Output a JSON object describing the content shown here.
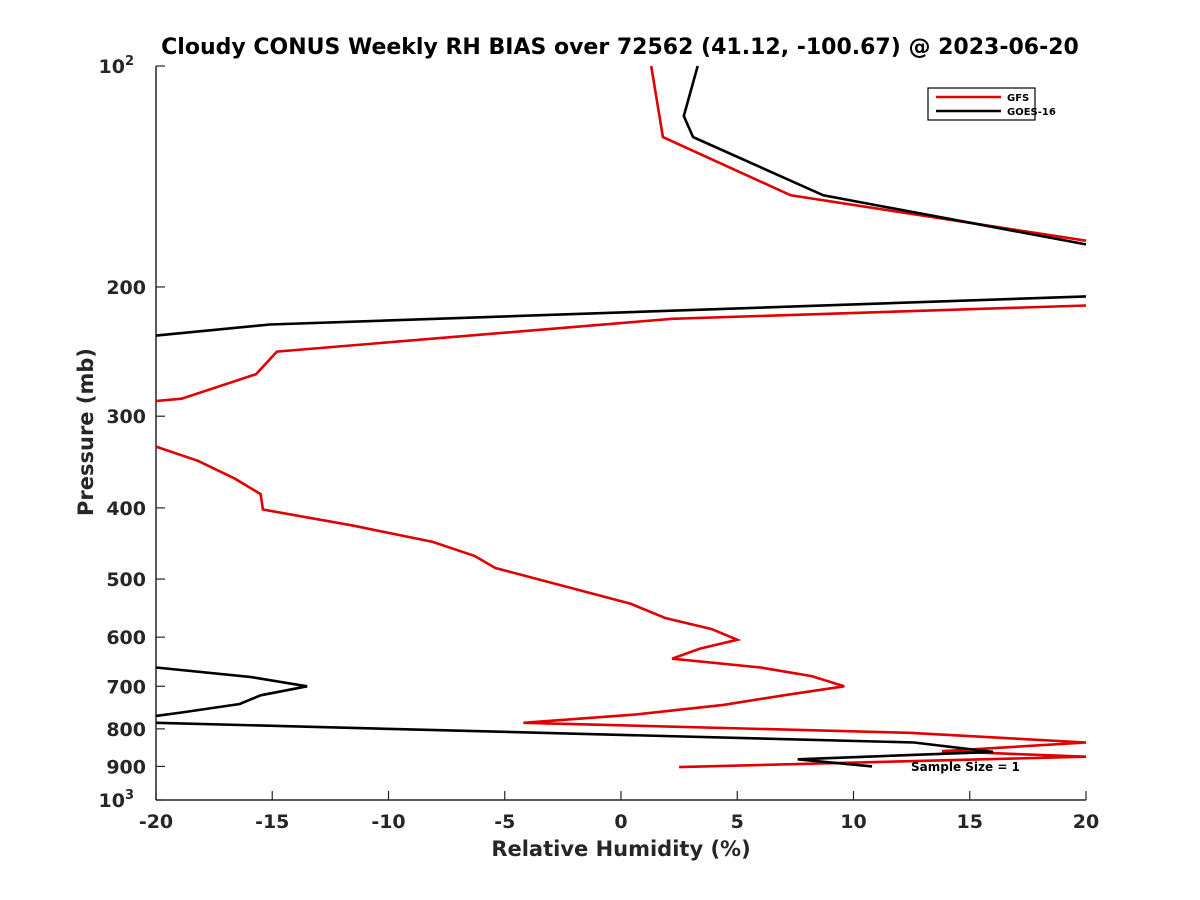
{
  "chart_data": {
    "type": "line",
    "title": "Cloudy CONUS Weekly RH BIAS over 72562 (41.12, -100.67) @ 2023-06-20",
    "xlabel": "Relative Humidity (%)",
    "ylabel": "Pressure (mb)",
    "xlim": [
      -20,
      20
    ],
    "ylim": [
      100,
      1000
    ],
    "yscale": "log",
    "y_reversed": true,
    "grid": false,
    "legend_position": "top-right",
    "x_ticks": [
      "-20",
      "-15",
      "-10",
      "-5",
      "0",
      "5",
      "10",
      "15",
      "20"
    ],
    "y_ticks": [
      {
        "base": "10",
        "exp": "2",
        "text": ""
      },
      {
        "text": "200"
      },
      {
        "text": "300"
      },
      {
        "text": "400"
      },
      {
        "text": "500"
      },
      {
        "text": "600"
      },
      {
        "text": "700"
      },
      {
        "text": "800"
      },
      {
        "text": "900"
      },
      {
        "base": "10",
        "exp": "3",
        "text": ""
      }
    ],
    "annotation": "Sample Size = 1",
    "series": [
      {
        "name": "GFS",
        "color": "#e00000",
        "points": [
          [
            1.3,
            100
          ],
          [
            1.8,
            125
          ],
          [
            7.3,
            150
          ],
          [
            20,
            173
          ],
          [
            null,
            null
          ],
          [
            20,
            212
          ],
          [
            2.2,
            221
          ],
          [
            -14.8,
            245
          ],
          [
            -15.7,
            263
          ],
          [
            -18.9,
            284
          ],
          [
            -20,
            286
          ],
          [
            null,
            null
          ],
          [
            -20,
            330
          ],
          [
            -18.2,
            345
          ],
          [
            -16.6,
            365
          ],
          [
            -15.5,
            383
          ],
          [
            -15.4,
            402
          ],
          [
            -11.5,
            423
          ],
          [
            -8.1,
            445
          ],
          [
            -6.3,
            465
          ],
          [
            -5.4,
            483
          ],
          [
            0.4,
            540
          ],
          [
            1.9,
            565
          ],
          [
            3.9,
            585
          ],
          [
            5.0,
            605
          ],
          [
            3.4,
            622
          ],
          [
            2.2,
            642
          ],
          [
            6.0,
            660
          ],
          [
            8.2,
            678
          ],
          [
            9.6,
            700
          ],
          [
            7.0,
            720
          ],
          [
            4.4,
            742
          ],
          [
            0.6,
            765
          ],
          [
            -4.2,
            785
          ],
          [
            12.4,
            810
          ],
          [
            20,
            835
          ],
          [
            13.8,
            858
          ],
          [
            20,
            873
          ],
          [
            2.5,
            902
          ]
        ]
      },
      {
        "name": "GOES-16",
        "color": "#000000",
        "points": [
          [
            3.3,
            100
          ],
          [
            2.7,
            117
          ],
          [
            3.1,
            125
          ],
          [
            8.7,
            150
          ],
          [
            20,
            175
          ],
          [
            null,
            null
          ],
          [
            20,
            206
          ],
          [
            -15.1,
            225
          ],
          [
            -20,
            233
          ],
          [
            null,
            null
          ],
          [
            -20,
            660
          ],
          [
            -15.9,
            680
          ],
          [
            -13.5,
            700
          ],
          [
            -15.5,
            720
          ],
          [
            -16.4,
            740
          ],
          [
            -18.9,
            760
          ],
          [
            -20,
            768
          ],
          [
            null,
            null
          ],
          [
            -20,
            785
          ],
          [
            12.6,
            835
          ],
          [
            16.0,
            860
          ],
          [
            7.6,
            880
          ],
          [
            10.8,
            900
          ]
        ]
      }
    ]
  }
}
